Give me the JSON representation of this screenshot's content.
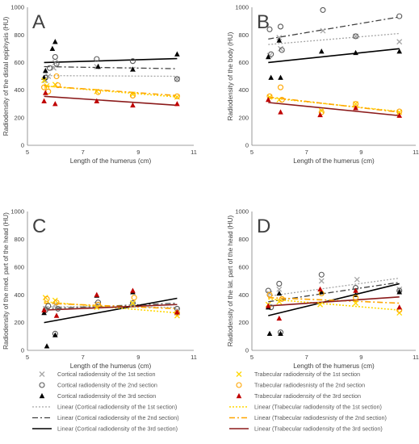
{
  "chart_data": [
    {
      "type": "scatter",
      "panel": "A",
      "xlabel": "Length of the humerus (cm)",
      "ylabel": "Radiodensity of the distal epiphysis (HU)",
      "xlim": [
        5,
        11
      ],
      "ylim": [
        0,
        1000
      ],
      "xticks": [
        5,
        7,
        9,
        11
      ],
      "yticks": [
        0,
        200,
        400,
        600,
        800,
        1000
      ],
      "series": [
        {
          "key": "cort1",
          "points": [
            [
              5.65,
              470
            ],
            [
              5.75,
              500
            ],
            [
              5.95,
              560
            ],
            [
              6.0,
              600
            ],
            [
              7.5,
              570
            ],
            [
              8.8,
              550
            ],
            [
              10.4,
              480
            ]
          ]
        },
        {
          "key": "cort2",
          "points": [
            [
              5.65,
              490
            ],
            [
              5.8,
              560
            ],
            [
              6.0,
              640
            ],
            [
              6.05,
              590
            ],
            [
              7.5,
              625
            ],
            [
              8.8,
              610
            ],
            [
              10.4,
              480
            ]
          ]
        },
        {
          "key": "cort3",
          "points": [
            [
              5.6,
              490
            ],
            [
              5.65,
              540
            ],
            [
              5.9,
              700
            ],
            [
              6.0,
              750
            ],
            [
              7.55,
              570
            ],
            [
              8.8,
              550
            ],
            [
              10.4,
              660
            ]
          ]
        },
        {
          "key": "trab1",
          "points": [
            [
              5.6,
              470
            ],
            [
              5.7,
              430
            ],
            [
              6.0,
              440
            ],
            [
              7.5,
              390
            ],
            [
              8.8,
              370
            ],
            [
              10.4,
              350
            ]
          ]
        },
        {
          "key": "trab2",
          "points": [
            [
              5.6,
              420
            ],
            [
              5.75,
              390
            ],
            [
              6.05,
              500
            ],
            [
              6.1,
              435
            ],
            [
              7.55,
              385
            ],
            [
              8.8,
              360
            ],
            [
              10.4,
              355
            ]
          ]
        },
        {
          "key": "trab3",
          "points": [
            [
              5.6,
              320
            ],
            [
              5.65,
              380
            ],
            [
              6.0,
              300
            ],
            [
              7.5,
              320
            ],
            [
              8.8,
              290
            ],
            [
              10.4,
              300
            ]
          ]
        }
      ],
      "trendlines": [
        {
          "key": "lin1",
          "from": [
            5.6,
            505
          ],
          "to": [
            10.4,
            500
          ]
        },
        {
          "key": "lin2",
          "from": [
            5.6,
            570
          ],
          "to": [
            10.4,
            555
          ]
        },
        {
          "key": "lin3",
          "from": [
            5.6,
            600
          ],
          "to": [
            10.4,
            628
          ]
        },
        {
          "key": "ltrab1",
          "from": [
            5.6,
            430
          ],
          "to": [
            10.4,
            350
          ]
        },
        {
          "key": "ltrab2",
          "from": [
            5.6,
            430
          ],
          "to": [
            10.4,
            360
          ]
        },
        {
          "key": "ltrab3",
          "from": [
            5.6,
            355
          ],
          "to": [
            10.4,
            290
          ]
        }
      ]
    },
    {
      "type": "scatter",
      "panel": "B",
      "xlabel": "Length of the humerus (cm)",
      "ylabel": "Radiodensity of the body (HU)",
      "xlim": [
        5,
        11
      ],
      "ylim": [
        0,
        1000
      ],
      "xticks": [
        5,
        7,
        9,
        11
      ],
      "yticks": [
        0,
        200,
        400,
        600,
        800,
        1000
      ],
      "series": [
        {
          "key": "cort1",
          "points": [
            [
              5.65,
              650
            ],
            [
              6.0,
              780
            ],
            [
              6.05,
              700
            ],
            [
              7.6,
              830
            ],
            [
              8.8,
              790
            ],
            [
              10.4,
              750
            ]
          ]
        },
        {
          "key": "cort2",
          "points": [
            [
              5.65,
              840
            ],
            [
              5.7,
              660
            ],
            [
              6.05,
              860
            ],
            [
              6.1,
              690
            ],
            [
              7.6,
              980
            ],
            [
              8.8,
              790
            ],
            [
              10.4,
              935
            ]
          ]
        },
        {
          "key": "cort3",
          "points": [
            [
              5.6,
              640
            ],
            [
              5.7,
              490
            ],
            [
              6.0,
              760
            ],
            [
              6.05,
              490
            ],
            [
              7.55,
              680
            ],
            [
              8.8,
              670
            ],
            [
              10.4,
              680
            ]
          ]
        },
        {
          "key": "trab1",
          "points": [
            [
              5.65,
              350
            ],
            [
              6.0,
              330
            ],
            [
              7.55,
              250
            ],
            [
              8.8,
              300
            ],
            [
              10.4,
              240
            ]
          ]
        },
        {
          "key": "trab2",
          "points": [
            [
              5.65,
              355
            ],
            [
              6.05,
              420
            ],
            [
              6.1,
              330
            ],
            [
              7.55,
              240
            ],
            [
              8.8,
              300
            ],
            [
              10.4,
              245
            ]
          ]
        },
        {
          "key": "trab3",
          "points": [
            [
              5.6,
              330
            ],
            [
              6.05,
              240
            ],
            [
              7.5,
              220
            ],
            [
              8.8,
              270
            ],
            [
              10.4,
              215
            ]
          ]
        }
      ],
      "trendlines": [
        {
          "key": "lin1",
          "from": [
            5.6,
            730
          ],
          "to": [
            10.4,
            810
          ]
        },
        {
          "key": "lin2",
          "from": [
            5.6,
            770
          ],
          "to": [
            10.4,
            930
          ]
        },
        {
          "key": "lin3",
          "from": [
            5.6,
            600
          ],
          "to": [
            10.4,
            700
          ]
        },
        {
          "key": "ltrab1",
          "from": [
            5.6,
            345
          ],
          "to": [
            10.4,
            245
          ]
        },
        {
          "key": "ltrab2",
          "from": [
            5.6,
            350
          ],
          "to": [
            10.4,
            240
          ]
        },
        {
          "key": "ltrab3",
          "from": [
            5.6,
            310
          ],
          "to": [
            10.4,
            215
          ]
        }
      ]
    },
    {
      "type": "scatter",
      "panel": "C",
      "xlabel": "Length of the humerus (cm)",
      "ylabel": "Radiodensity of the med. part of the head (HU)",
      "xlim": [
        5,
        11
      ],
      "ylim": [
        0,
        1000
      ],
      "xticks": [
        5,
        7,
        9,
        11
      ],
      "yticks": [
        0,
        200,
        400,
        600,
        800,
        1000
      ],
      "series": [
        {
          "key": "cort1",
          "points": [
            [
              5.65,
              300
            ],
            [
              6.0,
              330
            ],
            [
              7.5,
              330
            ],
            [
              8.8,
              330
            ],
            [
              10.4,
              290
            ]
          ]
        },
        {
          "key": "cort2",
          "points": [
            [
              5.65,
              290
            ],
            [
              5.75,
              320
            ],
            [
              6.0,
              120
            ],
            [
              6.1,
              300
            ],
            [
              7.55,
              345
            ],
            [
              8.8,
              340
            ],
            [
              10.4,
              300
            ]
          ]
        },
        {
          "key": "cort3",
          "points": [
            [
              5.6,
              270
            ],
            [
              5.7,
              30
            ],
            [
              6.0,
              110
            ],
            [
              7.5,
              395
            ],
            [
              8.8,
              420
            ],
            [
              10.4,
              270
            ]
          ]
        },
        {
          "key": "trab1",
          "points": [
            [
              5.65,
              380
            ],
            [
              6.0,
              360
            ],
            [
              7.5,
              310
            ],
            [
              8.8,
              340
            ],
            [
              10.4,
              250
            ]
          ]
        },
        {
          "key": "trab2",
          "points": [
            [
              5.7,
              370
            ],
            [
              6.05,
              345
            ],
            [
              7.55,
              330
            ],
            [
              8.85,
              380
            ],
            [
              10.4,
              270
            ]
          ]
        },
        {
          "key": "trab3",
          "points": [
            [
              5.6,
              290
            ],
            [
              6.05,
              250
            ],
            [
              7.5,
              400
            ],
            [
              8.8,
              430
            ],
            [
              10.4,
              275
            ]
          ]
        }
      ],
      "trendlines": [
        {
          "key": "lin1",
          "from": [
            5.6,
            315
          ],
          "to": [
            10.4,
            310
          ]
        },
        {
          "key": "lin2",
          "from": [
            5.6,
            300
          ],
          "to": [
            10.4,
            340
          ]
        },
        {
          "key": "lin3",
          "from": [
            5.6,
            200
          ],
          "to": [
            10.4,
            375
          ]
        },
        {
          "key": "ltrab1",
          "from": [
            5.6,
            350
          ],
          "to": [
            10.4,
            270
          ]
        },
        {
          "key": "ltrab2",
          "from": [
            5.6,
            340
          ],
          "to": [
            10.4,
            300
          ]
        },
        {
          "key": "ltrab3",
          "from": [
            5.6,
            290
          ],
          "to": [
            10.4,
            330
          ]
        }
      ]
    },
    {
      "type": "scatter",
      "panel": "D",
      "xlabel": "Length of the humerus (cm)",
      "ylabel": "Radiodensity of the lat. part of the head (HU)",
      "xlim": [
        5,
        11
      ],
      "ylim": [
        0,
        1000
      ],
      "xticks": [
        5,
        7,
        9,
        11
      ],
      "yticks": [
        0,
        200,
        400,
        600,
        800,
        1000
      ],
      "series": [
        {
          "key": "cort1",
          "points": [
            [
              5.65,
              410
            ],
            [
              6.0,
              440
            ],
            [
              7.55,
              500
            ],
            [
              8.85,
              510
            ],
            [
              10.4,
              440
            ]
          ]
        },
        {
          "key": "cort2",
          "points": [
            [
              5.6,
              430
            ],
            [
              5.7,
              310
            ],
            [
              6.0,
              480
            ],
            [
              6.05,
              130
            ],
            [
              7.55,
              545
            ],
            [
              8.8,
              450
            ],
            [
              10.4,
              430
            ]
          ]
        },
        {
          "key": "cort3",
          "points": [
            [
              5.6,
              310
            ],
            [
              5.65,
              120
            ],
            [
              6.0,
              410
            ],
            [
              6.05,
              120
            ],
            [
              7.55,
              420
            ],
            [
              8.8,
              400
            ],
            [
              10.4,
              420
            ]
          ]
        },
        {
          "key": "trab1",
          "points": [
            [
              5.6,
              330
            ],
            [
              6.0,
              350
            ],
            [
              7.5,
              330
            ],
            [
              8.8,
              340
            ],
            [
              10.4,
              270
            ]
          ]
        },
        {
          "key": "trab2",
          "points": [
            [
              5.65,
              400
            ],
            [
              6.1,
              370
            ],
            [
              7.55,
              410
            ],
            [
              8.8,
              380
            ],
            [
              10.4,
              290
            ]
          ]
        },
        {
          "key": "trab3",
          "points": [
            [
              5.6,
              320
            ],
            [
              6.0,
              230
            ],
            [
              7.5,
              440
            ],
            [
              8.8,
              430
            ],
            [
              10.4,
              310
            ]
          ]
        }
      ],
      "trendlines": [
        {
          "key": "lin1",
          "from": [
            5.6,
            390
          ],
          "to": [
            10.4,
            520
          ]
        },
        {
          "key": "lin2",
          "from": [
            5.6,
            350
          ],
          "to": [
            10.4,
            490
          ]
        },
        {
          "key": "lin3",
          "from": [
            5.6,
            250
          ],
          "to": [
            10.4,
            480
          ]
        },
        {
          "key": "ltrab1",
          "from": [
            5.6,
            370
          ],
          "to": [
            10.4,
            290
          ]
        },
        {
          "key": "ltrab2",
          "from": [
            5.6,
            380
          ],
          "to": [
            10.4,
            340
          ]
        },
        {
          "key": "ltrab3",
          "from": [
            5.6,
            320
          ],
          "to": [
            10.4,
            385
          ]
        }
      ]
    }
  ],
  "legend": [
    {
      "key": "cort1",
      "label": "Cortical radiodensity of the 1st section",
      "kind": "marker",
      "marker": "x",
      "color": "#a6a6a6"
    },
    {
      "key": "trab1",
      "label": "Trabecular radiodensity of the 1st section",
      "kind": "marker",
      "marker": "x",
      "color": "#ffd700"
    },
    {
      "key": "cort2",
      "label": "Cortical radiodensity of the 2nd section",
      "kind": "marker",
      "marker": "circle",
      "color": "#595959"
    },
    {
      "key": "trab2",
      "label": "Trabecular radiodesnisty of the 2nd section",
      "kind": "marker",
      "marker": "circle",
      "color": "#ffa500"
    },
    {
      "key": "cort3",
      "label": "Cortical radiodensity of the 3rd section",
      "kind": "marker",
      "marker": "triangle",
      "color": "#000000"
    },
    {
      "key": "trab3",
      "label": "Trabecular radiodensity of the 3rd section",
      "kind": "marker",
      "marker": "triangle",
      "color": "#c00000"
    },
    {
      "key": "lin1",
      "label": "Linear (Cortical radiodensity of the 1st section)",
      "kind": "line",
      "dash": "2,2",
      "width": 1.3,
      "color": "#a6a6a6"
    },
    {
      "key": "ltrab1",
      "label": "Linear (Trabecular radiodensity of the 1st section)",
      "kind": "line",
      "dash": "2,2",
      "width": 1.6,
      "color": "#ffd700"
    },
    {
      "key": "lin2",
      "label": "Linear (Cortical radiodensity of the 2nd section)",
      "kind": "line",
      "dash": "7,3,2,3",
      "width": 1.3,
      "color": "#404040"
    },
    {
      "key": "ltrab2",
      "label": "Linear (Trabecular radiodesnisty of the 2nd section)",
      "kind": "line",
      "dash": "7,3,2,3",
      "width": 1.6,
      "color": "#ffa500"
    },
    {
      "key": "lin3",
      "label": "Linear (Cortical radiodensity of the 3rd section)",
      "kind": "line",
      "dash": "",
      "width": 1.6,
      "color": "#000000"
    },
    {
      "key": "ltrab3",
      "label": "Linear (Trabecular radiodensity of the 3rd section)",
      "kind": "line",
      "dash": "",
      "width": 1.6,
      "color": "#8b1a1a"
    }
  ]
}
